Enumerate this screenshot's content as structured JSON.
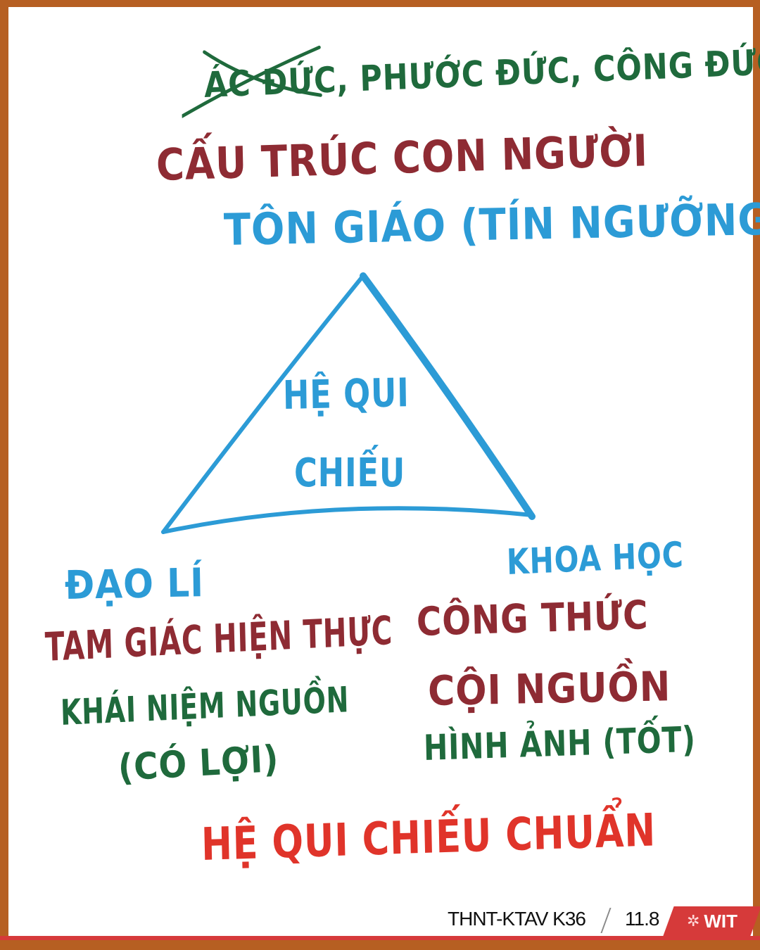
{
  "top": {
    "struck_text": "ÁC ĐỨC",
    "rest_text": ", PHƯỚC ĐỨC, CÔNG ĐỨC"
  },
  "structure_title": "CẤU TRÚC CON NGƯỜI",
  "religion_label": "TÔN GIÁO (TÍN NGƯỠNG)",
  "center_line1": "HỆ QUI",
  "center_line2": "CHIẾU",
  "left": {
    "label": "ĐẠO LÍ",
    "line1": "TAM GIÁC HIỆN THỰC",
    "line2": "KHÁI NIỆM NGUỒN",
    "line3": "(CÓ LỢI)"
  },
  "right": {
    "label": "KHOA HỌC",
    "line1": "CÔNG THỨC",
    "line2": "CỘI NGUỒN",
    "line3": "HÌNH ẢNH (TỐT)"
  },
  "bottom_title": "HỆ QUI CHIẾU CHUẨN",
  "footer": {
    "course": "THNT-KTAV K36",
    "page": "11.8",
    "logo": "WIT"
  },
  "colors": {
    "green": "#1f6a3c",
    "maroon": "#8e2b33",
    "blue": "#2c9bd6",
    "red": "#e0342a",
    "frame": "#b65f22",
    "footer_red": "#d63a3a"
  }
}
